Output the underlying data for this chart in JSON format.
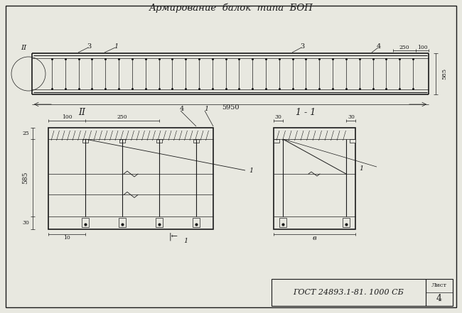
{
  "title": "Армирование  балок  типа  БОП",
  "bg_color": "#e8e8e0",
  "line_color": "#1a1a1a",
  "title_fontsize": 9.5,
  "label_fontsize": 6.5,
  "gost_text": "ГОСТ 24893.1-81. 1000 СБ",
  "sheet_text": "Лист",
  "sheet_num": "4"
}
